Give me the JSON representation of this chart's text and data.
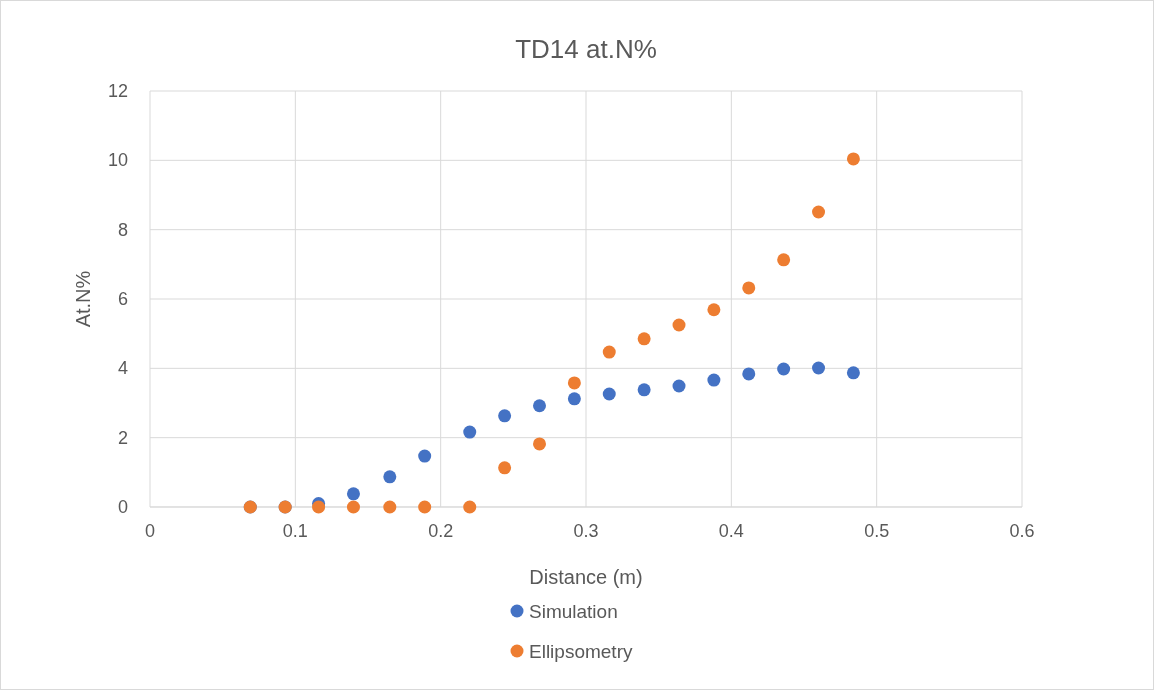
{
  "chart_data": {
    "type": "scatter",
    "title": "TD14 at.N%",
    "xlabel": "Distance (m)",
    "ylabel": "At.N%",
    "x": [
      0.069,
      0.093,
      0.116,
      0.14,
      0.165,
      0.189,
      0.22,
      0.244,
      0.268,
      0.292,
      0.316,
      0.34,
      0.364,
      0.388,
      0.412,
      0.436,
      0.46,
      0.484
    ],
    "series": [
      {
        "name": "Simulation",
        "color": "#4472c4",
        "values": [
          0,
          0,
          0.1,
          0.38,
          0.87,
          1.47,
          2.16,
          2.63,
          2.92,
          3.12,
          3.26,
          3.38,
          3.49,
          3.66,
          3.84,
          3.98,
          4.01,
          3.87
        ]
      },
      {
        "name": "Ellipsometry",
        "color": "#ed7d31",
        "values": [
          0,
          0,
          0,
          0,
          0,
          0,
          0,
          1.13,
          1.82,
          3.58,
          4.47,
          4.85,
          5.25,
          5.69,
          6.32,
          7.13,
          8.51,
          10.04
        ]
      }
    ],
    "xlim": [
      0,
      0.6
    ],
    "xticks": [
      0,
      0.1,
      0.2,
      0.3,
      0.4,
      0.5,
      0.6
    ],
    "ylim": [
      0,
      12
    ],
    "yticks": [
      0,
      2,
      4,
      6,
      8,
      10,
      12
    ],
    "grid": true,
    "legend": "bottom",
    "marker": "circle"
  }
}
